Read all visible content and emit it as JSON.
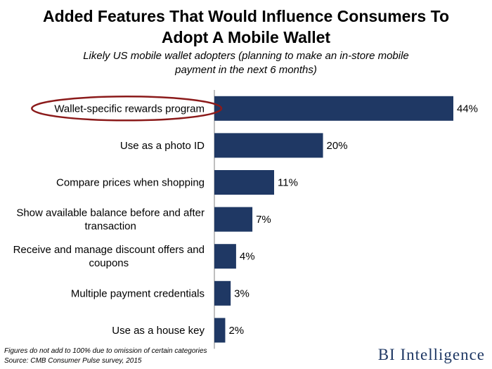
{
  "title": "Added Features That Would Influence Consumers To\nAdopt A Mobile Wallet",
  "subtitle": "Likely US mobile wallet adopters (planning to make an in-store mobile\npayment in the next 6 months)",
  "footnote": "Figures do not add to 100% due to omission of certain categories",
  "source": "Source: CMB Consumer Pulse survey, 2015",
  "brand": "BI Intelligence",
  "colors": {
    "bar": "#1f3864",
    "highlight": "#8b1a1a",
    "axis": "#7f7f7f"
  },
  "chart_data": {
    "type": "bar",
    "orientation": "horizontal",
    "categories": [
      "Wallet-specific rewards program",
      "Use as a photo ID",
      "Compare prices when shopping",
      "Show available balance before and after transaction",
      "Receive and manage discount offers and coupons",
      "Multiple payment credentials",
      "Use as a house key"
    ],
    "values": [
      44,
      20,
      11,
      7,
      4,
      3,
      2
    ],
    "value_labels": [
      "44%",
      "20%",
      "11%",
      "7%",
      "4%",
      "3%",
      "2%"
    ],
    "unit": "%",
    "xlim": [
      0,
      44
    ],
    "highlighted_category": "Wallet-specific rewards program",
    "grid": false,
    "legend": "none"
  }
}
